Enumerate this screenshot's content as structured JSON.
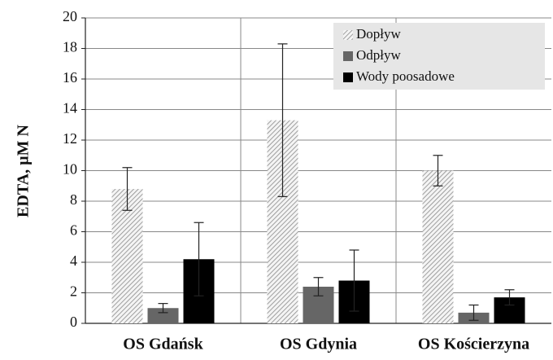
{
  "chart_data": {
    "type": "bar",
    "y_label": "EDTA, µM N",
    "categories": [
      "OS Gdańsk",
      "OS Gdynia",
      "OS Kościerzyna"
    ],
    "series": [
      {
        "name": "Dopływ",
        "color": "#b0b0b0",
        "hatch": true,
        "values": [
          8.8,
          13.3,
          10.0
        ],
        "errors": [
          1.4,
          5.0,
          1.0
        ]
      },
      {
        "name": "Odpływ",
        "color": "#666666",
        "values": [
          1.0,
          2.4,
          0.7
        ],
        "errors": [
          0.3,
          0.6,
          0.5
        ]
      },
      {
        "name": "Wody poosadowe",
        "color": "#000000",
        "values": [
          4.2,
          2.8,
          1.7
        ],
        "errors": [
          2.4,
          2.0,
          0.5
        ]
      }
    ],
    "ylim": [
      0,
      20
    ],
    "yticks": [
      0,
      2,
      4,
      6,
      8,
      10,
      12,
      14,
      16,
      18,
      20
    ],
    "grid": true,
    "legend": "top-right"
  }
}
